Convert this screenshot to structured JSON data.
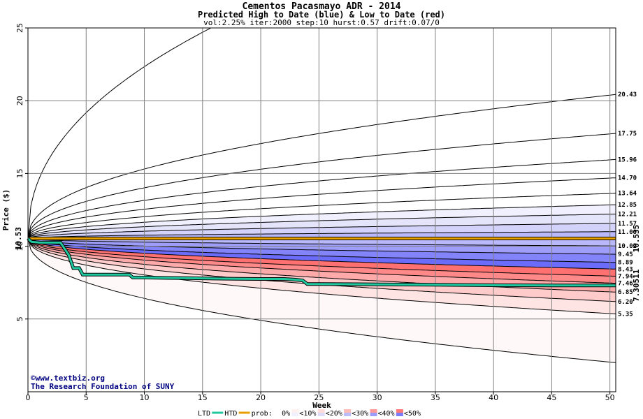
{
  "chart_data": {
    "type": "area",
    "title": "Cementos Pacasmayo ADR - 2014",
    "subtitle": "Predicted High to Date (blue) &  Low to Date (red)",
    "params": "vol:2.25% iter:2000 step:10 hurst:0.57 drift:0.07/0",
    "xlabel": "Week",
    "ylabel": "Price ($)",
    "xlim": [
      0,
      50.5
    ],
    "ylim": [
      0,
      25
    ],
    "x_ticks": [
      0,
      5,
      10,
      15,
      20,
      25,
      30,
      35,
      40,
      45,
      50
    ],
    "y_ticks": [
      5,
      10,
      15,
      20,
      25
    ],
    "start_price": 10.53,
    "start_price_label": "10.53",
    "grid": true,
    "band_colors": [
      "#fff8f8",
      "#ffe4e4",
      "#ffcaca",
      "#ffaaaa",
      "#ff8888",
      "#ff7070",
      "#6c6cfa",
      "#8484fa",
      "#9e9efa",
      "#b8b8fa",
      "#d2d2fa",
      "#e4e4fa",
      "#f0f0ff"
    ],
    "quantile_curves": [
      {
        "end": 2.0,
        "label": ""
      },
      {
        "end": 5.35,
        "label": "5.35"
      },
      {
        "end": 6.2,
        "label": "6.20"
      },
      {
        "end": 6.85,
        "label": "6.85"
      },
      {
        "end": 7.46,
        "label": "7.46"
      },
      {
        "end": 7.94,
        "label": "7.94"
      },
      {
        "end": 8.43,
        "label": "8.43"
      },
      {
        "end": 8.89,
        "label": "8.89"
      },
      {
        "end": 9.45,
        "label": "9.45"
      },
      {
        "end": 10.02,
        "label": "10.02"
      },
      {
        "end": 11.0,
        "label": "11.00"
      },
      {
        "end": 11.57,
        "label": "11.57"
      },
      {
        "end": 12.21,
        "label": "12.21"
      },
      {
        "end": 12.85,
        "label": "12.85"
      },
      {
        "end": 13.64,
        "label": "13.64"
      },
      {
        "end": 14.7,
        "label": "14.70"
      },
      {
        "end": 15.96,
        "label": "15.96"
      },
      {
        "end": 17.75,
        "label": "17.75"
      },
      {
        "end": 20.43,
        "label": "20.43"
      },
      {
        "end": 35.0,
        "label": ""
      }
    ],
    "ltd_series": {
      "name": "LTD",
      "color": "#20c8a0",
      "x": [
        0,
        0.3,
        1,
        2,
        2.8,
        3.5,
        3.9,
        4.4,
        4.7,
        5,
        6,
        7,
        8,
        8.7,
        9,
        10,
        12,
        14,
        16,
        18,
        20,
        22,
        23,
        23.6,
        24,
        25,
        30,
        35,
        40,
        45,
        50.5
      ],
      "y": [
        10.53,
        10.3,
        10.25,
        10.25,
        10.25,
        9.4,
        8.5,
        8.5,
        8.05,
        8.05,
        8.05,
        8.05,
        8.05,
        8.05,
        7.85,
        7.85,
        7.82,
        7.8,
        7.78,
        7.76,
        7.75,
        7.75,
        7.7,
        7.65,
        7.4,
        7.4,
        7.38,
        7.35,
        7.32,
        7.31,
        7.305
      ]
    },
    "ltd_end_label": "7.30511",
    "htd_series": {
      "name": "HTD",
      "color": "#e8a000",
      "x": [
        0,
        50.5
      ],
      "y": [
        10.535,
        10.535
      ]
    },
    "htd_end_label": "10.535",
    "watermark_line1": "©www.textbiz.org",
    "watermark_line2": "The Research Foundation of SUNY",
    "legend": {
      "position": "bottom",
      "ltd": "LTD",
      "htd": "HTD",
      "prob_label": "prob:",
      "prob_levels": [
        "0%",
        "<10%",
        "<20%",
        "<30%",
        "<40%",
        "<50%"
      ],
      "prob_colors": [
        "#ffffff",
        "#fff0f0",
        "#ffdcdc",
        "#ffbaba",
        "#ff9a9a",
        "#ff7878"
      ],
      "prob_colors_blue": [
        "#ffffff",
        "#f0f0ff",
        "#dcdcfa",
        "#bcbcfa",
        "#9c9cfa",
        "#7c7cfa"
      ]
    }
  }
}
